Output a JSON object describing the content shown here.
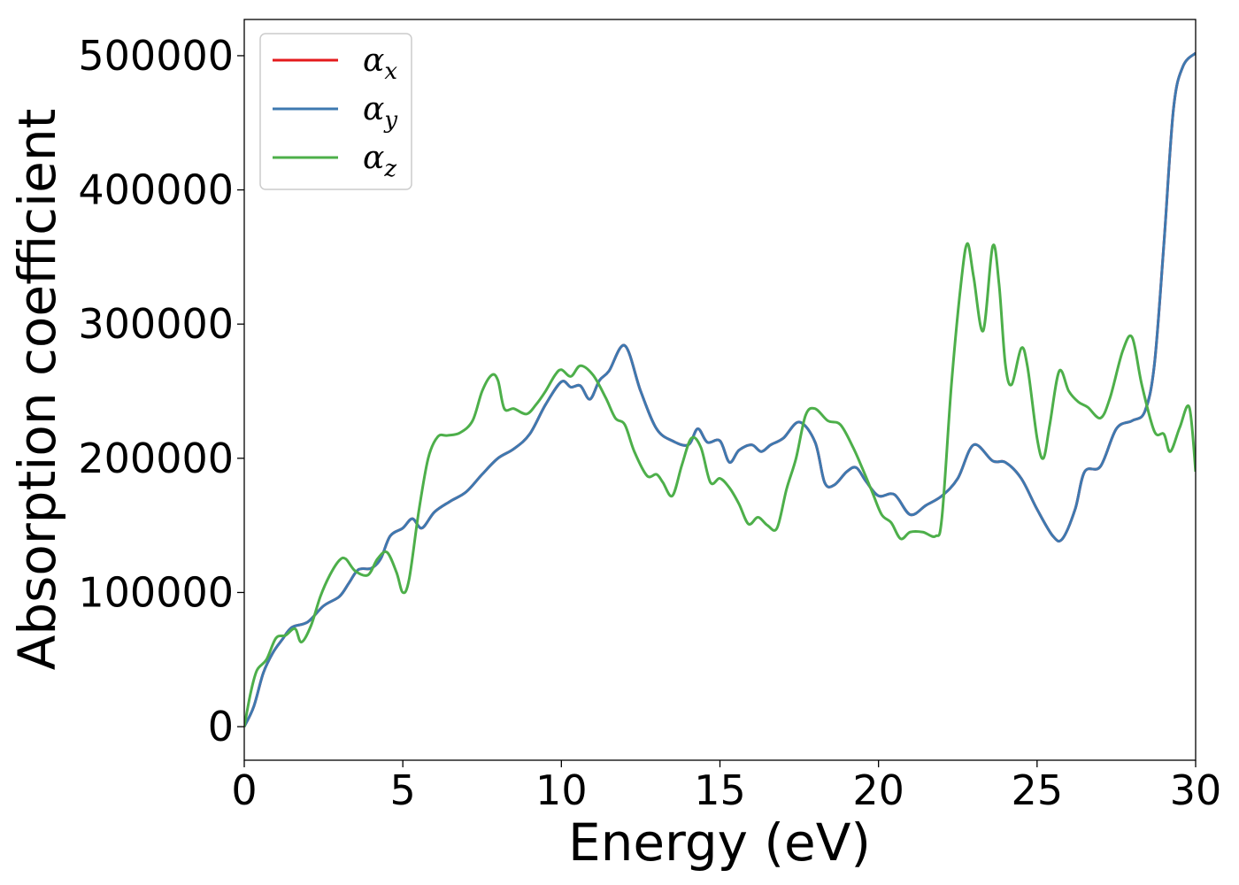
{
  "chart_data": {
    "type": "line",
    "xlabel": "Energy (eV)",
    "ylabel": "Absorption coefficient",
    "xlim": [
      0,
      30
    ],
    "ylim": [
      -25000,
      527000
    ],
    "xticks": [
      0,
      5,
      10,
      15,
      20,
      25,
      30
    ],
    "yticks": [
      0,
      100000,
      200000,
      300000,
      400000,
      500000
    ],
    "grid": false,
    "legend_position": "top-left",
    "series": [
      {
        "name": "α_x",
        "label_main": "α",
        "label_sub": "x",
        "color": "#e41a1c",
        "x": [
          0,
          0.3,
          0.6,
          0.9,
          1.2,
          1.5,
          2.0,
          2.5,
          3.0,
          3.3,
          3.6,
          4.0,
          4.3,
          4.6,
          5.0,
          5.3,
          5.6,
          6.0,
          6.5,
          7.0,
          7.5,
          8.0,
          8.5,
          9.0,
          9.5,
          10.0,
          10.3,
          10.6,
          10.9,
          11.2,
          11.5,
          12.0,
          12.5,
          13.0,
          13.5,
          14.0,
          14.3,
          14.6,
          15.0,
          15.3,
          15.6,
          16.0,
          16.3,
          16.6,
          17.0,
          17.5,
          18.0,
          18.3,
          18.6,
          19.0,
          19.3,
          19.6,
          20.0,
          20.5,
          21.0,
          21.5,
          22.0,
          22.5,
          23.0,
          23.6,
          24.0,
          24.5,
          25.0,
          25.5,
          25.8,
          26.2,
          26.5,
          27.0,
          27.5,
          28.0,
          28.4,
          28.7,
          29.0,
          29.3,
          29.6,
          30.0
        ],
        "y": [
          0,
          15000,
          40000,
          55000,
          65000,
          74000,
          78000,
          90000,
          97000,
          107000,
          117000,
          118000,
          125000,
          142000,
          148000,
          155000,
          148000,
          160000,
          168000,
          175000,
          188000,
          200000,
          207000,
          218000,
          240000,
          257000,
          253000,
          254000,
          244000,
          258000,
          265000,
          284000,
          250000,
          222000,
          213000,
          210000,
          222000,
          212000,
          213000,
          197000,
          206000,
          210000,
          205000,
          210000,
          215000,
          227000,
          212000,
          182000,
          180000,
          190000,
          193000,
          183000,
          172000,
          173000,
          158000,
          165000,
          172000,
          185000,
          210000,
          198000,
          197000,
          185000,
          162000,
          142000,
          140000,
          162000,
          190000,
          194000,
          222000,
          228000,
          235000,
          270000,
          360000,
          460000,
          492000,
          502000
        ]
      },
      {
        "name": "α_y",
        "label_main": "α",
        "label_sub": "y",
        "color": "#3e79b0",
        "x": [
          0,
          0.3,
          0.6,
          0.9,
          1.2,
          1.5,
          2.0,
          2.5,
          3.0,
          3.3,
          3.6,
          4.0,
          4.3,
          4.6,
          5.0,
          5.3,
          5.6,
          6.0,
          6.5,
          7.0,
          7.5,
          8.0,
          8.5,
          9.0,
          9.5,
          10.0,
          10.3,
          10.6,
          10.9,
          11.2,
          11.5,
          12.0,
          12.5,
          13.0,
          13.5,
          14.0,
          14.3,
          14.6,
          15.0,
          15.3,
          15.6,
          16.0,
          16.3,
          16.6,
          17.0,
          17.5,
          18.0,
          18.3,
          18.6,
          19.0,
          19.3,
          19.6,
          20.0,
          20.5,
          21.0,
          21.5,
          22.0,
          22.5,
          23.0,
          23.6,
          24.0,
          24.5,
          25.0,
          25.5,
          25.8,
          26.2,
          26.5,
          27.0,
          27.5,
          28.0,
          28.4,
          28.7,
          29.0,
          29.3,
          29.6,
          30.0
        ],
        "y": [
          0,
          15000,
          40000,
          55000,
          65000,
          74000,
          78000,
          90000,
          97000,
          107000,
          117000,
          118000,
          125000,
          142000,
          148000,
          155000,
          148000,
          160000,
          168000,
          175000,
          188000,
          200000,
          207000,
          218000,
          240000,
          257000,
          253000,
          254000,
          244000,
          258000,
          265000,
          284000,
          250000,
          222000,
          213000,
          210000,
          222000,
          212000,
          213000,
          197000,
          206000,
          210000,
          205000,
          210000,
          215000,
          227000,
          212000,
          182000,
          180000,
          190000,
          193000,
          183000,
          172000,
          173000,
          158000,
          165000,
          172000,
          185000,
          210000,
          198000,
          197000,
          185000,
          162000,
          142000,
          140000,
          162000,
          190000,
          194000,
          222000,
          228000,
          235000,
          270000,
          360000,
          460000,
          492000,
          502000
        ]
      },
      {
        "name": "α_z",
        "label_main": "α",
        "label_sub": "z",
        "color": "#4daf4a",
        "x": [
          0,
          0.2,
          0.4,
          0.7,
          1.0,
          1.3,
          1.6,
          1.8,
          2.1,
          2.4,
          2.7,
          3.0,
          3.2,
          3.5,
          3.9,
          4.2,
          4.5,
          4.8,
          5.0,
          5.2,
          5.5,
          5.8,
          6.1,
          6.4,
          6.8,
          7.2,
          7.5,
          7.8,
          8.0,
          8.2,
          8.5,
          8.9,
          9.2,
          9.5,
          9.8,
          10.0,
          10.3,
          10.6,
          11.0,
          11.4,
          11.7,
          12.0,
          12.3,
          12.7,
          13.0,
          13.2,
          13.5,
          13.8,
          14.1,
          14.4,
          14.7,
          15.0,
          15.3,
          15.6,
          15.9,
          16.2,
          16.5,
          16.8,
          17.1,
          17.4,
          17.7,
          18.0,
          18.4,
          18.8,
          19.2,
          19.5,
          19.8,
          20.1,
          20.4,
          20.7,
          21.0,
          21.4,
          21.8,
          22.0,
          22.3,
          22.6,
          22.8,
          23.0,
          23.3,
          23.6,
          23.8,
          24.0,
          24.2,
          24.5,
          24.7,
          25.0,
          25.2,
          25.4,
          25.7,
          26.0,
          26.3,
          26.6,
          27.0,
          27.3,
          27.7,
          28.0,
          28.3,
          28.7,
          29.0,
          29.2,
          29.5,
          29.8,
          30.0
        ],
        "y": [
          0,
          25000,
          42000,
          50000,
          66000,
          68000,
          73000,
          63000,
          75000,
          97000,
          113000,
          124000,
          125000,
          116000,
          113000,
          125000,
          130000,
          115000,
          100000,
          110000,
          160000,
          200000,
          216000,
          217000,
          219000,
          228000,
          250000,
          262000,
          258000,
          237000,
          237000,
          233000,
          240000,
          250000,
          262000,
          266000,
          261000,
          269000,
          262000,
          245000,
          230000,
          225000,
          205000,
          187000,
          188000,
          182000,
          172000,
          195000,
          215000,
          208000,
          182000,
          185000,
          178000,
          166000,
          151000,
          156000,
          150000,
          148000,
          177000,
          200000,
          232000,
          237000,
          228000,
          225000,
          208000,
          192000,
          175000,
          158000,
          152000,
          140000,
          145000,
          145000,
          142000,
          156000,
          255000,
          330000,
          360000,
          335000,
          295000,
          358000,
          330000,
          270000,
          255000,
          282000,
          268000,
          215000,
          200000,
          225000,
          265000,
          250000,
          242000,
          238000,
          230000,
          245000,
          280000,
          290000,
          255000,
          220000,
          218000,
          205000,
          223000,
          238000,
          190000
        ]
      }
    ]
  }
}
